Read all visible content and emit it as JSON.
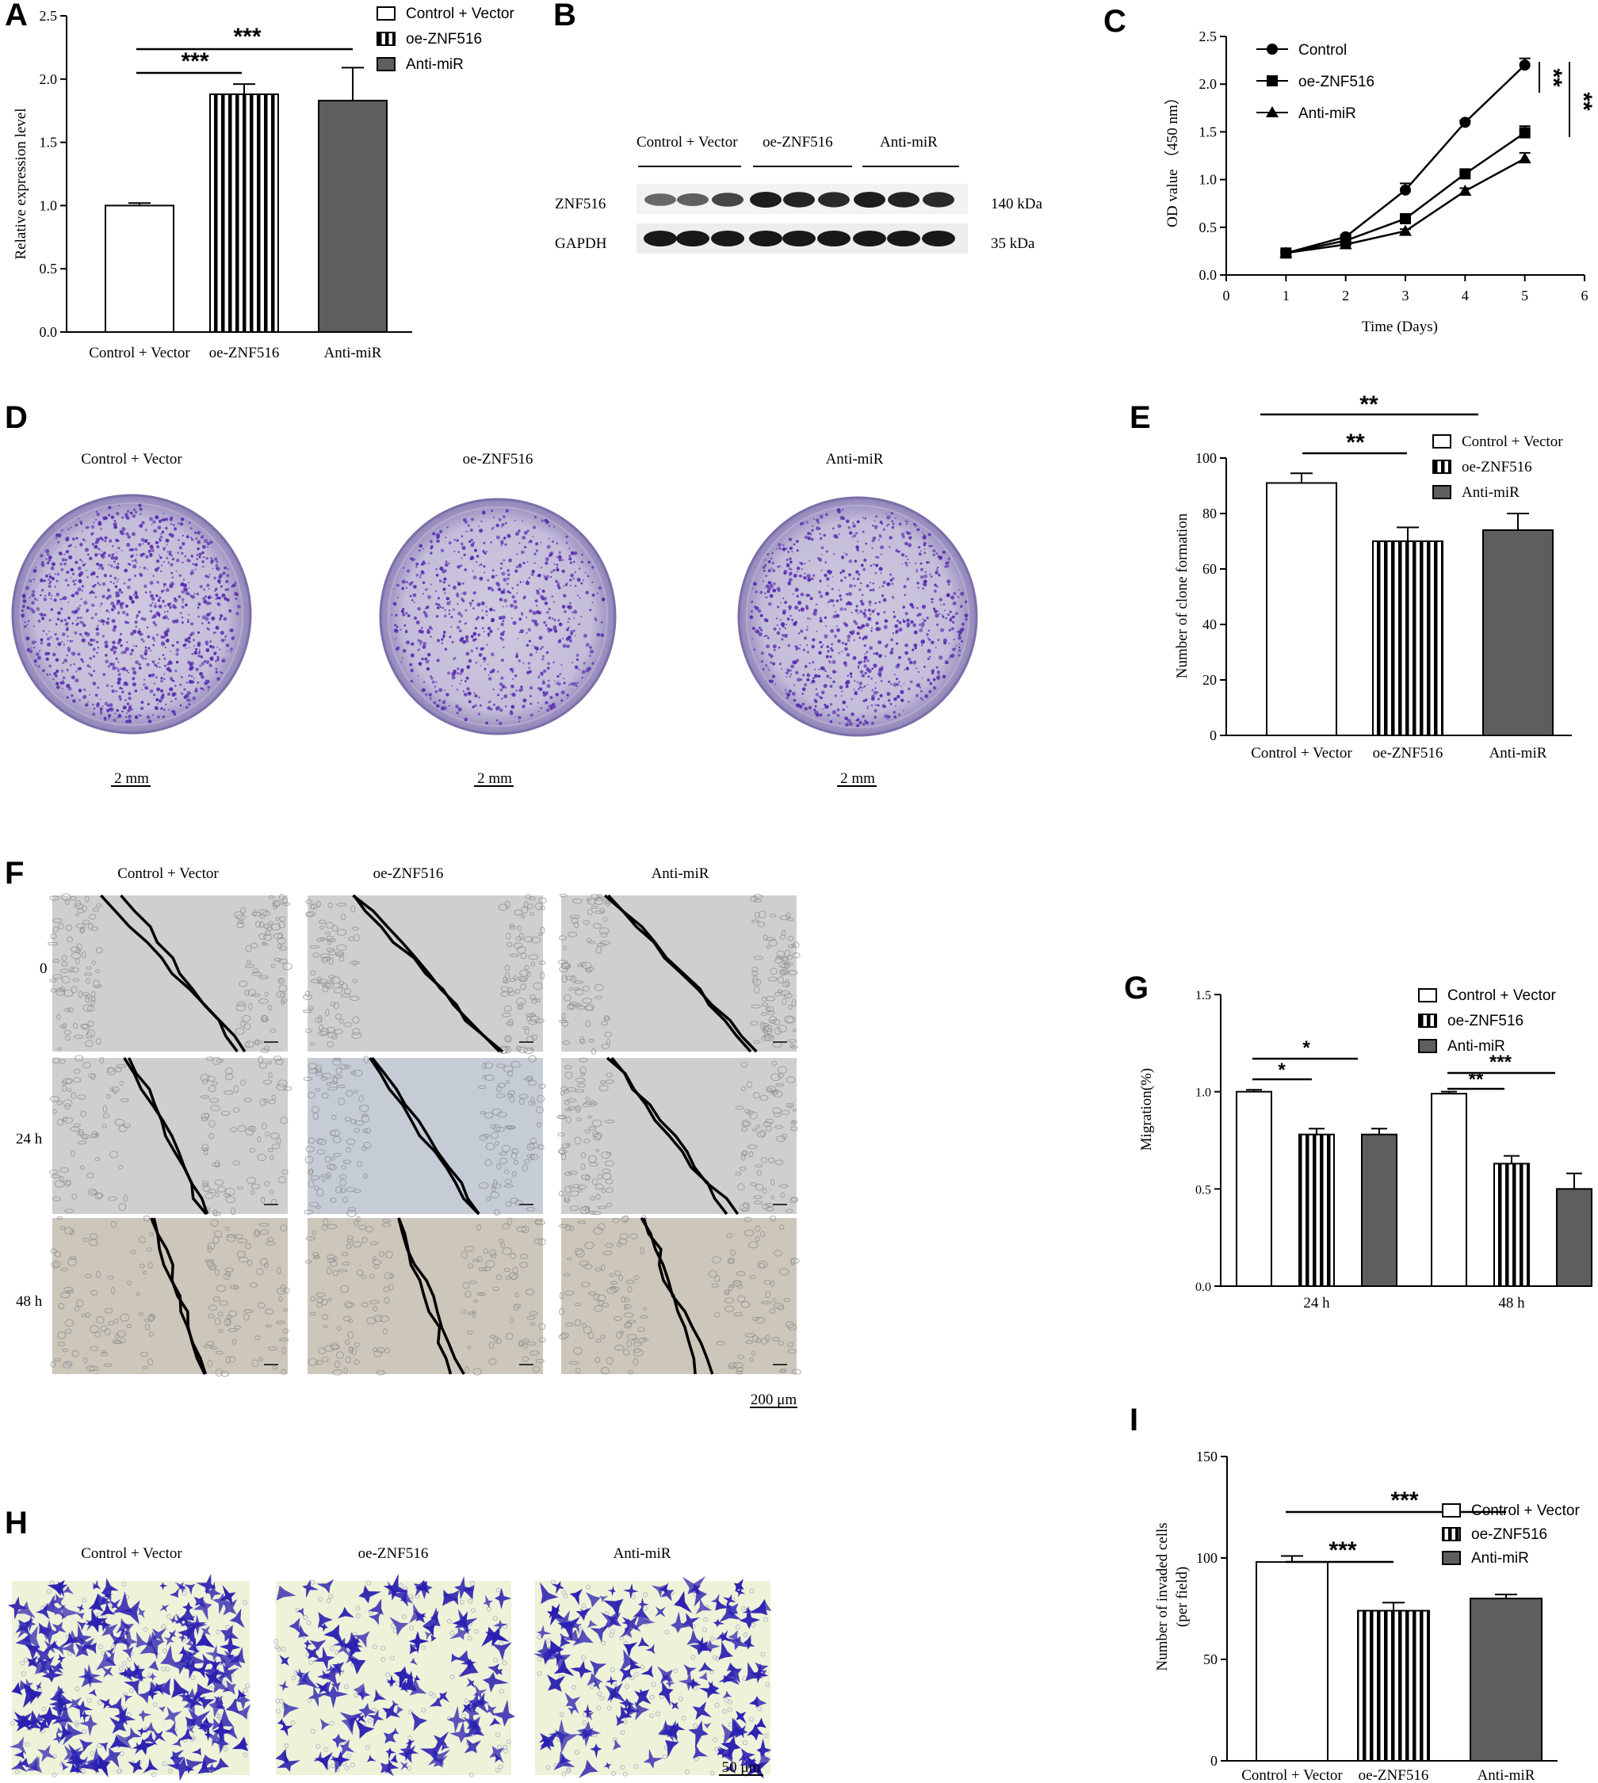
{
  "colors": {
    "bar_outline": "#000000",
    "bar_dark": "#5e5e5e",
    "stain": "#5a2db0",
    "dish": "#cdc7de",
    "scratch_bg": "#cfcfcf",
    "transwell_bg": "#eef2d8",
    "transwell_cell": "#2a1fb0"
  },
  "panel_letters": [
    "A",
    "B",
    "C",
    "D",
    "E",
    "F",
    "G",
    "H",
    "I"
  ],
  "legend_groups": [
    "Control + Vector",
    "oe-ZNF516",
    "Anti-miR"
  ],
  "lines_legend": [
    "Control",
    "oe-ZNF516",
    "Anti-miR"
  ],
  "chart_data": [
    {
      "panel": "A",
      "type": "bar",
      "categories": [
        "Control + Vector",
        "oe-ZNF516",
        "Anti-miR"
      ],
      "values": [
        1.0,
        1.88,
        1.83
      ],
      "errors": [
        0.02,
        0.08,
        0.26
      ],
      "ylabel": "Relative expression level",
      "ylim": [
        0,
        2.5
      ],
      "yticks": [
        "0.0",
        "0.5",
        "1.0",
        "1.5",
        "2.0",
        "2.5"
      ],
      "significance": [
        "***",
        "***"
      ],
      "legend_placement": "top-right"
    },
    {
      "panel": "B",
      "type": "table",
      "lane_groups": [
        "Control + Vector",
        "oe-ZNF516",
        "Anti-miR"
      ],
      "bands": [
        {
          "name": "ZNF516",
          "size": "140 kDa"
        },
        {
          "name": "GAPDH",
          "size": "35 kDa"
        }
      ]
    },
    {
      "panel": "C",
      "type": "line",
      "x": [
        1,
        2,
        3,
        4,
        5
      ],
      "series": [
        {
          "name": "Control",
          "values": [
            0.23,
            0.4,
            0.89,
            1.6,
            2.2
          ],
          "errors": [
            0.02,
            0.02,
            0.07,
            0.02,
            0.07
          ]
        },
        {
          "name": "oe-ZNF516",
          "values": [
            0.23,
            0.36,
            0.59,
            1.06,
            1.49
          ],
          "errors": [
            0.02,
            0.02,
            0.02,
            0.02,
            0.07
          ]
        },
        {
          "name": "Anti-miR",
          "values": [
            0.23,
            0.32,
            0.46,
            0.88,
            1.22
          ],
          "errors": [
            0.02,
            0.02,
            0.02,
            0.03,
            0.06
          ]
        }
      ],
      "xlabel": "Time (Days)",
      "ylabel": "OD value （450 nm）",
      "xlim": [
        0,
        6
      ],
      "ylim": [
        0,
        2.5
      ],
      "xticks": [
        "0",
        "1",
        "2",
        "3",
        "4",
        "5",
        "6"
      ],
      "yticks": [
        "0.0",
        "0.5",
        "1.0",
        "1.5",
        "2.0",
        "2.5"
      ],
      "significance": [
        "**",
        "**"
      ],
      "legend_placement": "top-left"
    },
    {
      "panel": "D",
      "type": "table",
      "groups": [
        "Control + Vector",
        "oe-ZNF516",
        "Anti-miR"
      ],
      "scale_bar": "2 mm"
    },
    {
      "panel": "E",
      "type": "bar",
      "categories": [
        "Control + Vector",
        "oe-ZNF516",
        "Anti-miR"
      ],
      "values": [
        91,
        70,
        74
      ],
      "errors": [
        3.5,
        5,
        6
      ],
      "ylabel": "Number of clone formation",
      "ylim": [
        0,
        100
      ],
      "yticks": [
        "0",
        "20",
        "40",
        "60",
        "80",
        "100"
      ],
      "significance": [
        "**",
        "**"
      ],
      "legend_placement": "top-right"
    },
    {
      "panel": "F",
      "type": "table",
      "groups": [
        "Control + Vector",
        "oe-ZNF516",
        "Anti-miR"
      ],
      "timepoints": [
        "0",
        "24 h",
        "48 h"
      ],
      "scale_bar": "200 μm"
    },
    {
      "panel": "G",
      "type": "bar",
      "categories": [
        "24 h",
        "48 h"
      ],
      "series": [
        {
          "name": "Control + Vector",
          "values": [
            1.0,
            0.99
          ],
          "errors": [
            0.01,
            0.01
          ]
        },
        {
          "name": "oe-ZNF516",
          "values": [
            0.78,
            0.63
          ],
          "errors": [
            0.03,
            0.04
          ]
        },
        {
          "name": "Anti-miR",
          "values": [
            0.78,
            0.5
          ],
          "errors": [
            0.03,
            0.08
          ]
        }
      ],
      "ylabel": "Migration(%)",
      "ylim": [
        0,
        1.5
      ],
      "yticks": [
        "0.0",
        "0.5",
        "1.0",
        "1.5"
      ],
      "significance": [
        "*",
        "*",
        "**",
        "***"
      ],
      "legend_placement": "top-right"
    },
    {
      "panel": "H",
      "type": "table",
      "groups": [
        "Control + Vector",
        "oe-ZNF516",
        "Anti-miR"
      ],
      "scale_bar": "50 μm"
    },
    {
      "panel": "I",
      "type": "bar",
      "categories": [
        "Control + Vector",
        "oe-ZNF516",
        "Anti-miR"
      ],
      "values": [
        98,
        74,
        80
      ],
      "errors": [
        3,
        4,
        2
      ],
      "ylabel": "Number of invaded cells",
      "ylabel2": "(per field)",
      "ylim": [
        0,
        150
      ],
      "yticks": [
        "0",
        "50",
        "100",
        "150"
      ],
      "significance": [
        "***",
        "***"
      ],
      "legend_placement": "top-right"
    }
  ]
}
